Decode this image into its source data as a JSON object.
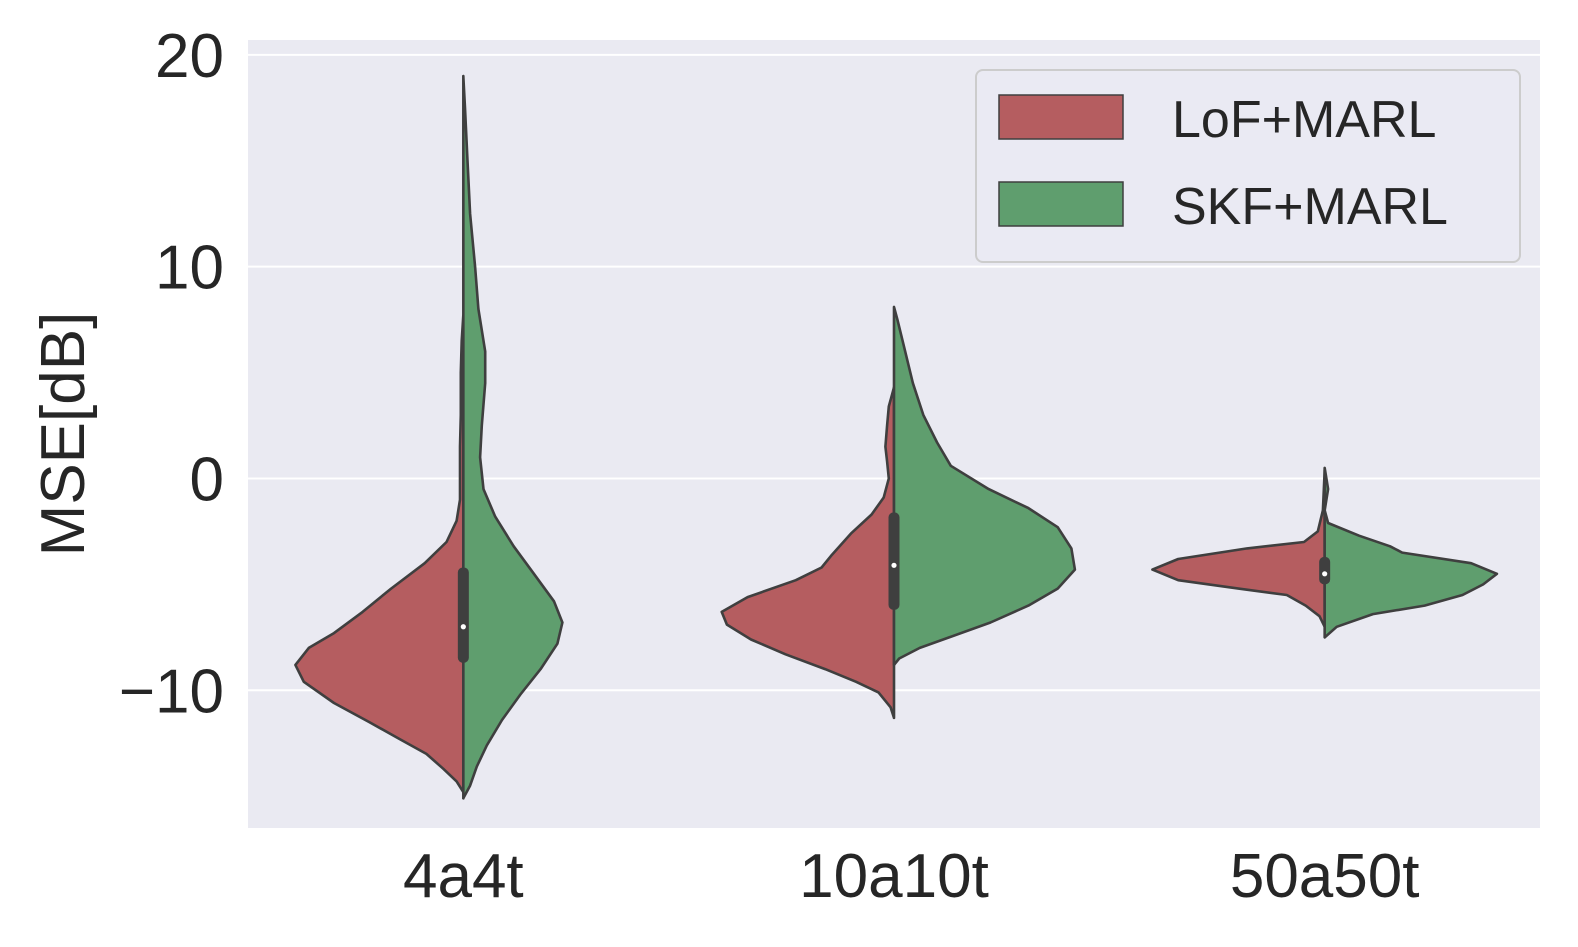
{
  "chart_data": {
    "type": "violin",
    "split": true,
    "title": "",
    "xlabel": "",
    "ylabel": "MSE[dB]",
    "ylim": [
      -16.5,
      20.7
    ],
    "yticks": [
      -10,
      0,
      10,
      20
    ],
    "ytick_labels": [
      "−10",
      "0",
      "10",
      "20"
    ],
    "grid": true,
    "legend_position": "top-right",
    "categories": [
      "4a4t",
      "10a10t",
      "50a50t"
    ],
    "series": [
      {
        "name": "LoF+MARL",
        "color": "#b55d60",
        "violins": [
          {
            "min": -14.8,
            "max": 7.7,
            "profile": [
              [
                -14.8,
                0.0
              ],
              [
                -14.3,
                0.04
              ],
              [
                -13.7,
                0.12
              ],
              [
                -13.0,
                0.22
              ],
              [
                -12.3,
                0.38
              ],
              [
                -11.5,
                0.56
              ],
              [
                -10.6,
                0.77
              ],
              [
                -9.6,
                0.95
              ],
              [
                -8.8,
                1.0
              ],
              [
                -8.0,
                0.92
              ],
              [
                -7.3,
                0.77
              ],
              [
                -6.3,
                0.6
              ],
              [
                -5.2,
                0.43
              ],
              [
                -4.0,
                0.23
              ],
              [
                -3.0,
                0.1
              ],
              [
                -2.0,
                0.04
              ],
              [
                -1.0,
                0.02
              ],
              [
                0.0,
                0.02
              ],
              [
                1.5,
                0.02
              ],
              [
                3.0,
                0.015
              ],
              [
                5.0,
                0.015
              ],
              [
                6.5,
                0.01
              ],
              [
                7.7,
                0.0
              ]
            ]
          },
          {
            "min": -11.3,
            "max": 4.3,
            "profile": [
              [
                -11.3,
                0.0
              ],
              [
                -10.8,
                0.02
              ],
              [
                -10.1,
                0.09
              ],
              [
                -9.6,
                0.22
              ],
              [
                -9.0,
                0.4
              ],
              [
                -8.3,
                0.63
              ],
              [
                -7.6,
                0.83
              ],
              [
                -6.9,
                0.97
              ],
              [
                -6.3,
                1.0
              ],
              [
                -5.6,
                0.85
              ],
              [
                -4.8,
                0.57
              ],
              [
                -4.2,
                0.42
              ],
              [
                -3.6,
                0.36
              ],
              [
                -2.6,
                0.25
              ],
              [
                -1.7,
                0.13
              ],
              [
                -0.9,
                0.06
              ],
              [
                0.0,
                0.03
              ],
              [
                0.8,
                0.04
              ],
              [
                1.5,
                0.05
              ],
              [
                2.5,
                0.04
              ],
              [
                3.4,
                0.03
              ],
              [
                4.3,
                0.0
              ]
            ]
          },
          {
            "min": -7.0,
            "max": 0.4,
            "profile": [
              [
                -7.0,
                0.0
              ],
              [
                -6.5,
                0.03
              ],
              [
                -6.0,
                0.11
              ],
              [
                -5.5,
                0.22
              ],
              [
                -5.2,
                0.5
              ],
              [
                -4.8,
                0.85
              ],
              [
                -4.3,
                1.0
              ],
              [
                -3.8,
                0.85
              ],
              [
                -3.3,
                0.45
              ],
              [
                -3.0,
                0.12
              ],
              [
                -2.5,
                0.04
              ],
              [
                -1.5,
                0.01
              ],
              [
                0.4,
                0.0
              ]
            ]
          }
        ]
      },
      {
        "name": "SKF+MARL",
        "color": "#5f9e6e",
        "violins": [
          {
            "min": -15.1,
            "max": 19.0,
            "profile": [
              [
                -15.1,
                0.0
              ],
              [
                -14.5,
                0.04
              ],
              [
                -13.6,
                0.08
              ],
              [
                -12.6,
                0.14
              ],
              [
                -11.4,
                0.23
              ],
              [
                -10.2,
                0.34
              ],
              [
                -9.0,
                0.46
              ],
              [
                -7.8,
                0.56
              ],
              [
                -6.8,
                0.59
              ],
              [
                -5.8,
                0.54
              ],
              [
                -4.5,
                0.42
              ],
              [
                -3.2,
                0.3
              ],
              [
                -1.8,
                0.19
              ],
              [
                -0.5,
                0.12
              ],
              [
                1.0,
                0.1
              ],
              [
                2.5,
                0.11
              ],
              [
                4.5,
                0.13
              ],
              [
                6.0,
                0.13
              ],
              [
                8.0,
                0.09
              ],
              [
                10.0,
                0.07
              ],
              [
                12.5,
                0.04
              ],
              [
                15.0,
                0.025
              ],
              [
                17.5,
                0.01
              ],
              [
                19.0,
                0.0
              ]
            ]
          },
          {
            "min": -8.8,
            "max": 8.1,
            "profile": [
              [
                -8.8,
                0.0
              ],
              [
                -8.5,
                0.03
              ],
              [
                -8.0,
                0.15
              ],
              [
                -7.5,
                0.32
              ],
              [
                -6.8,
                0.56
              ],
              [
                -6.0,
                0.78
              ],
              [
                -5.2,
                0.95
              ],
              [
                -4.3,
                1.05
              ],
              [
                -3.3,
                1.03
              ],
              [
                -2.3,
                0.95
              ],
              [
                -1.4,
                0.78
              ],
              [
                -0.5,
                0.55
              ],
              [
                0.6,
                0.33
              ],
              [
                1.7,
                0.25
              ],
              [
                3.0,
                0.17
              ],
              [
                4.5,
                0.11
              ],
              [
                6.5,
                0.05
              ],
              [
                7.5,
                0.02
              ],
              [
                8.1,
                0.0
              ]
            ]
          },
          {
            "min": -7.5,
            "max": 0.5,
            "profile": [
              [
                -7.5,
                0.0
              ],
              [
                -7.0,
                0.07
              ],
              [
                -6.4,
                0.28
              ],
              [
                -6.0,
                0.58
              ],
              [
                -5.5,
                0.8
              ],
              [
                -5.0,
                0.92
              ],
              [
                -4.5,
                1.0
              ],
              [
                -4.0,
                0.85
              ],
              [
                -3.5,
                0.45
              ],
              [
                -3.2,
                0.38
              ],
              [
                -2.7,
                0.2
              ],
              [
                -2.1,
                0.02
              ],
              [
                -1.5,
                0.0
              ],
              [
                -0.5,
                0.02
              ],
              [
                0.5,
                0.0
              ]
            ]
          }
        ]
      }
    ],
    "boxes": [
      {
        "q1": -8.7,
        "median": -7.0,
        "q3": -4.2
      },
      {
        "q1": -6.2,
        "median": -4.1,
        "q3": -1.6
      },
      {
        "q1": -5.0,
        "median": -4.5,
        "q3": -3.7
      }
    ],
    "max_halfwidth_frac": [
      0.39,
      0.4,
      0.4
    ]
  }
}
